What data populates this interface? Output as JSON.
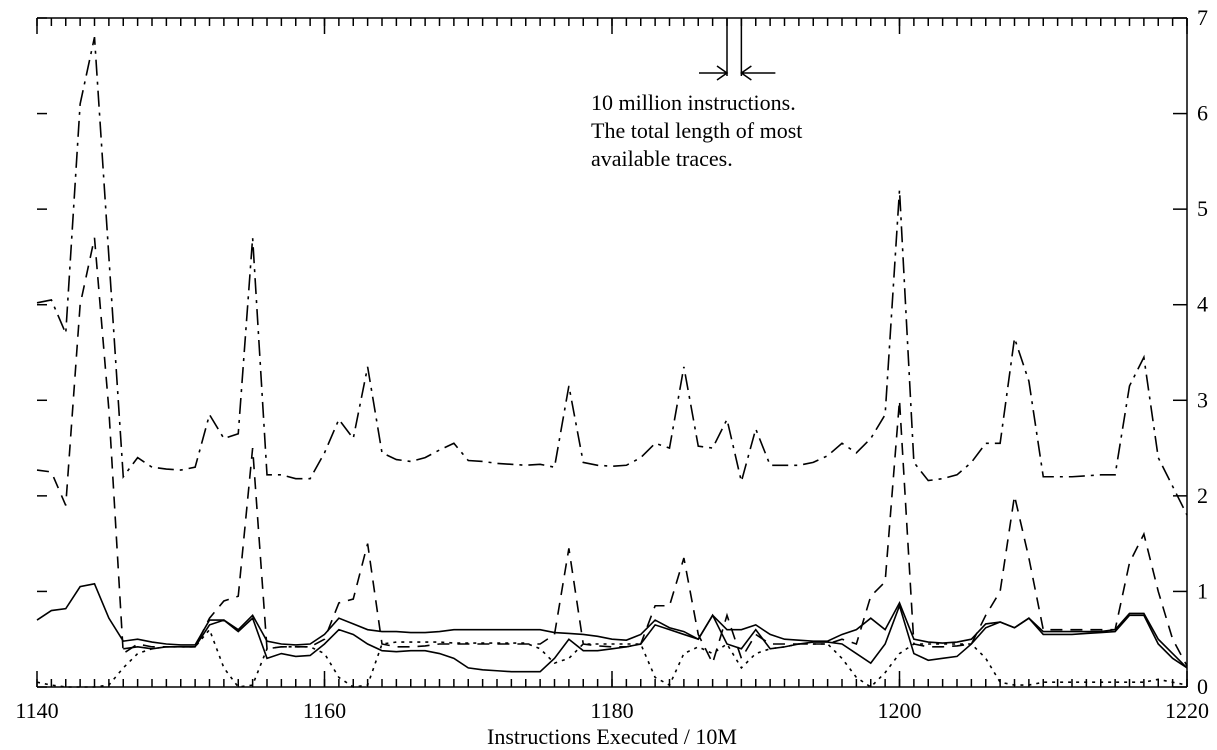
{
  "chart_data": {
    "type": "line",
    "xlabel": "Instructions Executed / 10M",
    "annotations": [
      "10 million instructions.",
      "The total length of most",
      "available traces."
    ],
    "marker_span": [
      1188,
      1189
    ],
    "xlim": [
      1140,
      1220
    ],
    "xticks": [
      1140,
      1160,
      1180,
      1200,
      1220
    ],
    "ylim": [
      0,
      7
    ],
    "yticks": [
      0,
      1,
      2,
      3,
      4,
      5,
      6,
      7
    ],
    "y_axis_side": "right",
    "x": [
      1140,
      1141,
      1142,
      1143,
      1144,
      1145,
      1146,
      1147,
      1148,
      1149,
      1150,
      1151,
      1152,
      1153,
      1154,
      1155,
      1156,
      1157,
      1158,
      1159,
      1160,
      1161,
      1162,
      1163,
      1164,
      1165,
      1166,
      1167,
      1168,
      1169,
      1170,
      1171,
      1172,
      1173,
      1174,
      1175,
      1176,
      1177,
      1178,
      1179,
      1180,
      1181,
      1182,
      1183,
      1184,
      1185,
      1186,
      1187,
      1188,
      1189,
      1190,
      1191,
      1192,
      1193,
      1194,
      1195,
      1196,
      1197,
      1198,
      1199,
      1200,
      1201,
      1202,
      1203,
      1204,
      1205,
      1206,
      1207,
      1208,
      1209,
      1210,
      1211,
      1212,
      1213,
      1214,
      1215,
      1216,
      1217,
      1218,
      1219,
      1220
    ],
    "series": [
      {
        "color": "#000000",
        "dash": "dash-dot",
        "values": [
          4.02,
          4.05,
          3.7,
          6.1,
          6.8,
          4.5,
          2.2,
          2.4,
          2.3,
          2.28,
          2.27,
          2.3,
          2.85,
          2.6,
          2.65,
          4.7,
          2.22,
          2.22,
          2.18,
          2.18,
          2.45,
          2.8,
          2.6,
          3.35,
          2.45,
          2.38,
          2.36,
          2.4,
          2.48,
          2.55,
          2.37,
          2.36,
          2.34,
          2.33,
          2.32,
          2.33,
          2.3,
          3.15,
          2.35,
          2.32,
          2.31,
          2.32,
          2.4,
          2.55,
          2.5,
          3.35,
          2.52,
          2.5,
          2.8,
          2.15,
          2.7,
          2.32,
          2.32,
          2.32,
          2.35,
          2.42,
          2.55,
          2.45,
          2.6,
          2.85,
          5.2,
          2.35,
          2.16,
          2.18,
          2.22,
          2.35,
          2.55,
          2.55,
          3.65,
          3.2,
          2.2,
          2.2,
          2.2,
          2.21,
          2.22,
          2.22,
          3.15,
          3.45,
          2.4,
          2.1,
          1.8
        ]
      },
      {
        "color": "#000000",
        "dash": "dashed",
        "values": [
          2.27,
          2.25,
          1.9,
          4.0,
          4.7,
          2.9,
          0.35,
          0.45,
          0.42,
          0.42,
          0.42,
          0.42,
          0.72,
          0.9,
          0.95,
          2.5,
          0.4,
          0.42,
          0.42,
          0.42,
          0.5,
          0.88,
          0.92,
          1.5,
          0.45,
          0.42,
          0.42,
          0.43,
          0.45,
          0.45,
          0.45,
          0.45,
          0.45,
          0.45,
          0.45,
          0.45,
          0.55,
          1.45,
          0.45,
          0.43,
          0.42,
          0.42,
          0.45,
          0.85,
          0.85,
          1.35,
          0.55,
          0.25,
          0.75,
          0.3,
          0.55,
          0.45,
          0.45,
          0.45,
          0.45,
          0.45,
          0.5,
          0.45,
          0.95,
          1.1,
          3.0,
          0.45,
          0.42,
          0.42,
          0.43,
          0.45,
          0.75,
          1.0,
          2.0,
          1.35,
          0.6,
          0.6,
          0.6,
          0.6,
          0.6,
          0.6,
          1.3,
          1.6,
          1.0,
          0.5,
          0.22
        ]
      },
      {
        "color": "#000000",
        "dash": "solid",
        "values": [
          0.7,
          0.8,
          0.82,
          1.05,
          1.08,
          0.72,
          0.48,
          0.5,
          0.47,
          0.45,
          0.44,
          0.44,
          0.7,
          0.7,
          0.6,
          0.75,
          0.48,
          0.45,
          0.44,
          0.45,
          0.55,
          0.72,
          0.66,
          0.6,
          0.58,
          0.58,
          0.57,
          0.57,
          0.58,
          0.6,
          0.6,
          0.6,
          0.6,
          0.6,
          0.6,
          0.6,
          0.57,
          0.56,
          0.55,
          0.53,
          0.5,
          0.49,
          0.55,
          0.7,
          0.62,
          0.58,
          0.5,
          0.75,
          0.6,
          0.6,
          0.65,
          0.55,
          0.5,
          0.49,
          0.48,
          0.48,
          0.55,
          0.6,
          0.72,
          0.6,
          0.88,
          0.5,
          0.47,
          0.46,
          0.47,
          0.5,
          0.66,
          0.68,
          0.62,
          0.72,
          0.58,
          0.58,
          0.58,
          0.58,
          0.58,
          0.6,
          0.77,
          0.77,
          0.5,
          0.35,
          0.2
        ]
      },
      {
        "color": "#000000",
        "dash": "solid",
        "values": [
          null,
          null,
          null,
          null,
          null,
          null,
          0.4,
          0.42,
          0.4,
          0.42,
          0.42,
          0.42,
          0.65,
          0.7,
          0.58,
          0.72,
          0.3,
          0.35,
          0.32,
          0.33,
          0.45,
          0.6,
          0.55,
          0.45,
          0.38,
          0.37,
          0.38,
          0.38,
          0.35,
          0.3,
          0.2,
          0.18,
          0.17,
          0.16,
          0.16,
          0.16,
          0.3,
          0.5,
          0.38,
          0.38,
          0.4,
          0.42,
          0.45,
          0.65,
          0.6,
          0.55,
          0.5,
          0.75,
          0.45,
          0.4,
          0.6,
          0.4,
          0.42,
          0.45,
          0.47,
          0.47,
          0.45,
          0.35,
          0.25,
          0.45,
          0.85,
          0.35,
          0.28,
          0.3,
          0.32,
          0.45,
          0.62,
          0.68,
          0.62,
          0.72,
          0.55,
          0.55,
          0.55,
          0.56,
          0.57,
          0.58,
          0.75,
          0.75,
          0.45,
          0.3,
          0.2
        ]
      },
      {
        "color": "#000000",
        "dash": "dotted",
        "values": [
          0.05,
          0.02,
          0,
          0,
          0,
          0.02,
          0.2,
          0.35,
          0.4,
          0.42,
          0.42,
          0.42,
          0.6,
          0.2,
          0,
          0.02,
          0.4,
          0.42,
          0.42,
          0.42,
          0.35,
          0.1,
          0,
          0.02,
          0.45,
          0.47,
          0.47,
          0.47,
          0.47,
          0.46,
          0.46,
          0.46,
          0.46,
          0.46,
          0.46,
          0.4,
          0.25,
          0.3,
          0.45,
          0.45,
          0.45,
          0.45,
          0.45,
          0.1,
          0.02,
          0.35,
          0.42,
          0.35,
          0.45,
          0.2,
          0.35,
          0.4,
          0.42,
          0.45,
          0.45,
          0.45,
          0.3,
          0.1,
          0,
          0.15,
          0.35,
          0.45,
          0.45,
          0.45,
          0.45,
          0.45,
          0.3,
          0.05,
          0.02,
          0.02,
          0.05,
          0.05,
          0.05,
          0.05,
          0.05,
          0.05,
          0.05,
          0.05,
          0.08,
          0.05,
          0.02
        ]
      }
    ]
  }
}
